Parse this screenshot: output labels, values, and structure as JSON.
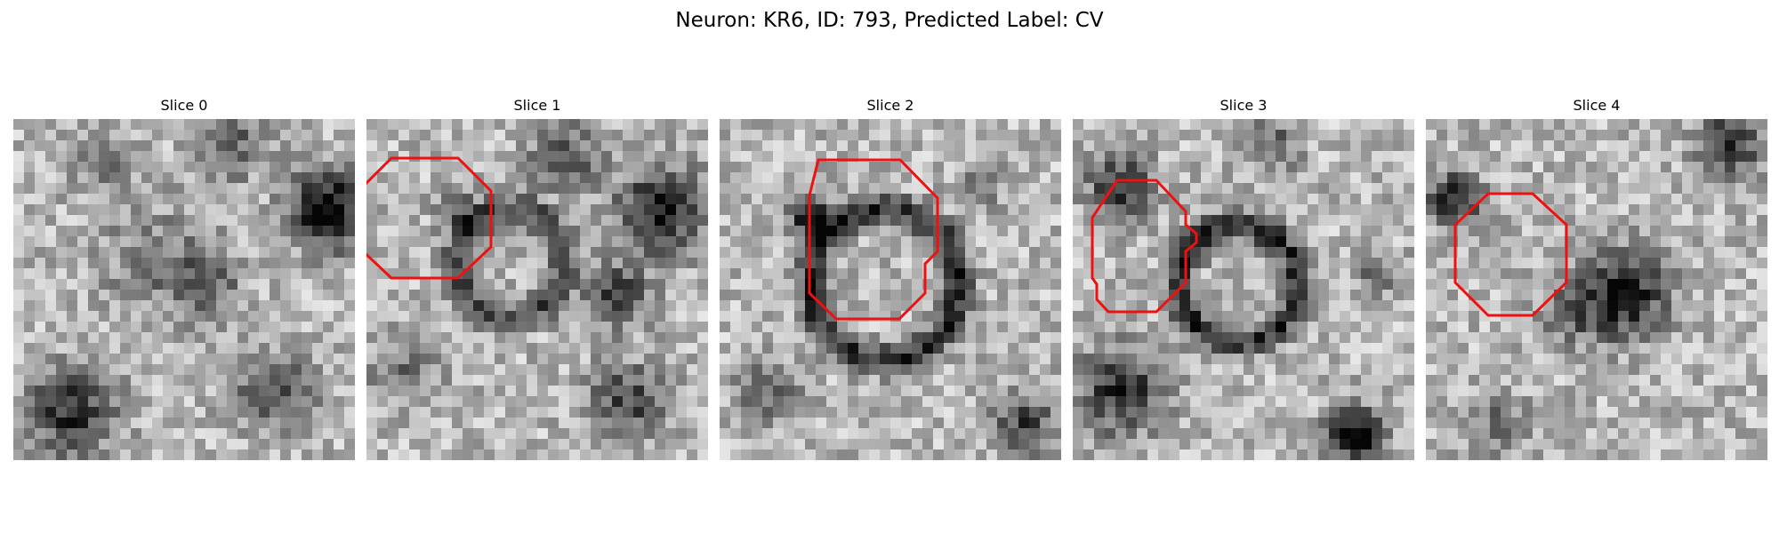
{
  "figure": {
    "title": "Neuron: KR6, ID: 793, Predicted Label: CV",
    "contour_color": "#ee1111"
  },
  "panels": [
    {
      "title": "Slice 0"
    },
    {
      "title": "Slice 1"
    },
    {
      "title": "Slice 2"
    },
    {
      "title": "Slice 3"
    },
    {
      "title": "Slice 4"
    }
  ]
}
